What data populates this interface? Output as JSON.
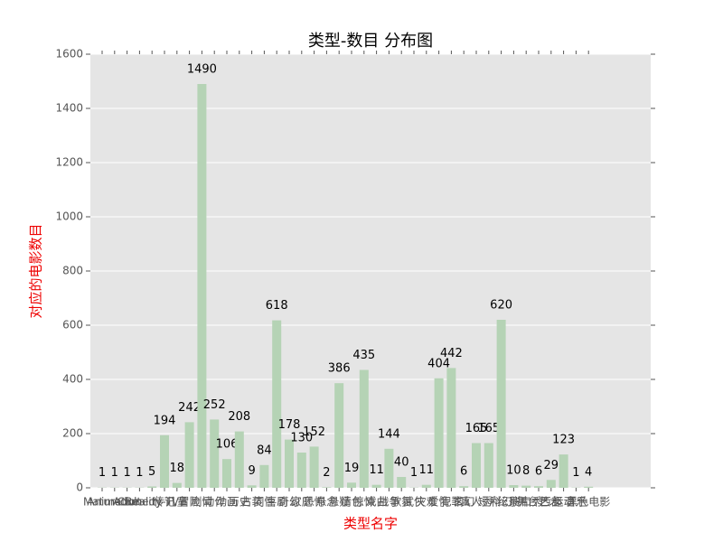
{
  "chart_data": {
    "type": "bar",
    "title": "类型-数目 分布图",
    "x_label": "类型名字",
    "y_label": "对应的电影数目",
    "categories": [
      "Mature",
      "Animation",
      "Adult",
      "Comedy",
      "Reality-TV",
      "传记",
      "儿童",
      "冒险",
      "剧情",
      "动作",
      "动画",
      "历史",
      "古装",
      "同性",
      "喜剧",
      "奇幻",
      "家庭",
      "恐怖",
      "悬念",
      "悬疑",
      "情色",
      "惊悚",
      "戏曲",
      "战争",
      "歌舞",
      "武侠",
      "灾难",
      "爱情",
      "犯罪",
      "玄幻",
      "真人秀",
      "短片",
      "科幻",
      "纪录片",
      "脱口秀",
      "舞台艺术",
      "西部",
      "运动",
      "音乐",
      "黑色电影"
    ],
    "values": [
      1,
      1,
      1,
      1,
      5,
      194,
      18,
      242,
      1490,
      252,
      106,
      208,
      9,
      84,
      618,
      178,
      130,
      152,
      2,
      386,
      19,
      435,
      11,
      144,
      40,
      1,
      11,
      404,
      442,
      6,
      165,
      165,
      620,
      10,
      8,
      6,
      29,
      123,
      1,
      4
    ],
    "color": "#b5d3b5",
    "ylim": [
      0,
      1600
    ],
    "yticks": [
      0,
      200,
      400,
      600,
      800,
      1000,
      1200,
      1400,
      1600
    ],
    "grid": true
  }
}
